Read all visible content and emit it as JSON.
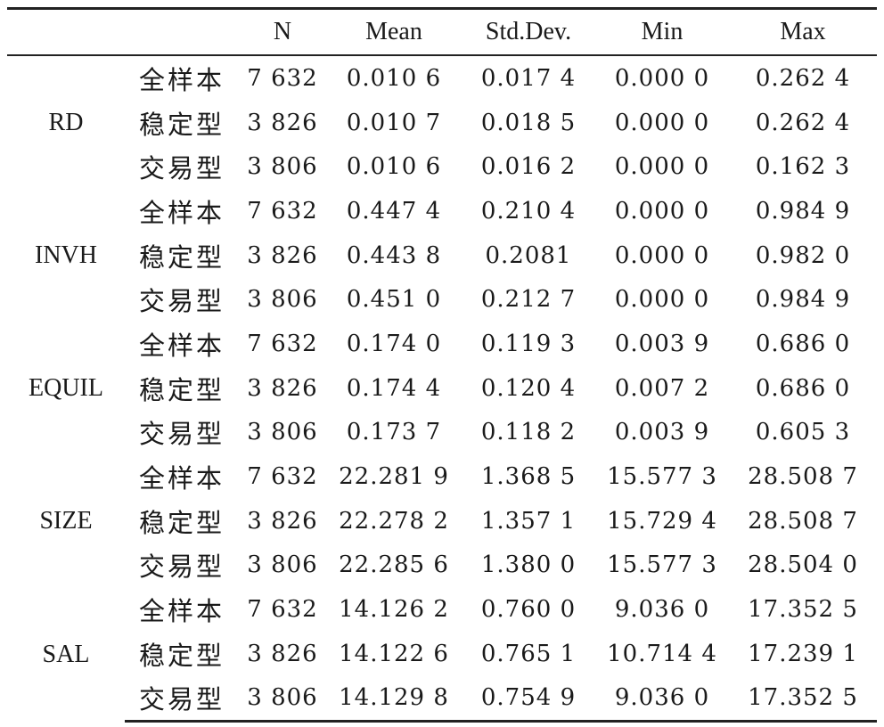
{
  "table": {
    "headers": [
      "",
      "",
      "N",
      "Mean",
      "Std.Dev.",
      "Min",
      "Max"
    ],
    "variables": [
      {
        "name": "RD",
        "rows": [
          {
            "group": "全样本",
            "n": "7 632",
            "mean": "0.010 6",
            "sd": "0.017 4",
            "min": "0.000 0",
            "max": "0.262 4"
          },
          {
            "group": "稳定型",
            "n": "3 826",
            "mean": "0.010 7",
            "sd": "0.018 5",
            "min": "0.000 0",
            "max": "0.262 4"
          },
          {
            "group": "交易型",
            "n": "3 806",
            "mean": "0.010 6",
            "sd": "0.016 2",
            "min": "0.000 0",
            "max": "0.162 3"
          }
        ]
      },
      {
        "name": "INVH",
        "rows": [
          {
            "group": "全样本",
            "n": "7 632",
            "mean": "0.447 4",
            "sd": "0.210 4",
            "min": "0.000 0",
            "max": "0.984 9"
          },
          {
            "group": "稳定型",
            "n": "3 826",
            "mean": "0.443 8",
            "sd": "0.2081",
            "min": "0.000 0",
            "max": "0.982 0"
          },
          {
            "group": "交易型",
            "n": "3 806",
            "mean": "0.451 0",
            "sd": "0.212 7",
            "min": "0.000 0",
            "max": "0.984 9"
          }
        ]
      },
      {
        "name": "EQUIL",
        "rows": [
          {
            "group": "全样本",
            "n": "7 632",
            "mean": "0.174 0",
            "sd": "0.119 3",
            "min": "0.003 9",
            "max": "0.686 0"
          },
          {
            "group": "稳定型",
            "n": "3 826",
            "mean": "0.174 4",
            "sd": "0.120 4",
            "min": "0.007 2",
            "max": "0.686 0"
          },
          {
            "group": "交易型",
            "n": "3 806",
            "mean": "0.173 7",
            "sd": "0.118 2",
            "min": "0.003 9",
            "max": "0.605 3"
          }
        ]
      },
      {
        "name": "SIZE",
        "rows": [
          {
            "group": "全样本",
            "n": "7 632",
            "mean": "22.281 9",
            "sd": "1.368 5",
            "min": "15.577 3",
            "max": "28.508 7"
          },
          {
            "group": "稳定型",
            "n": "3 826",
            "mean": "22.278 2",
            "sd": "1.357 1",
            "min": "15.729 4",
            "max": "28.508 7"
          },
          {
            "group": "交易型",
            "n": "3 806",
            "mean": "22.285 6",
            "sd": "1.380 0",
            "min": "15.577 3",
            "max": "28.504 0"
          }
        ]
      },
      {
        "name": "SAL",
        "rows": [
          {
            "group": "全样本",
            "n": "7 632",
            "mean": "14.126 2",
            "sd": "0.760 0",
            "min": "9.036 0",
            "max": "17.352 5"
          },
          {
            "group": "稳定型",
            "n": "3 826",
            "mean": "14.122 6",
            "sd": "0.765 1",
            "min": "10.714 4",
            "max": "17.239 1"
          },
          {
            "group": "交易型",
            "n": "3 806",
            "mean": "14.129 8",
            "sd": "0.754 9",
            "min": "9.036 0",
            "max": "17.352 5"
          }
        ]
      }
    ]
  }
}
